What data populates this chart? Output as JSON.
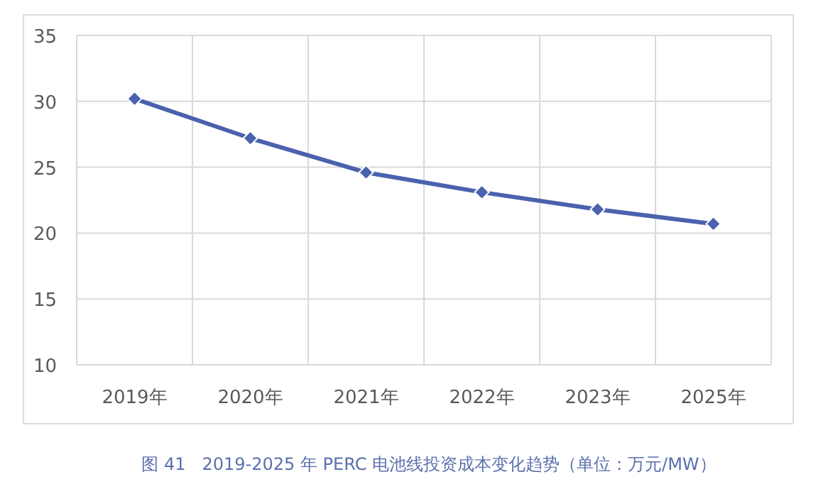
{
  "chart_data": {
    "type": "line",
    "title": "图 41   2019-2025 年 PERC 电池线投资成本变化趋势（单位：万元/MW）",
    "categories": [
      "2019年",
      "2020年",
      "2021年",
      "2022年",
      "2023年",
      "2025年"
    ],
    "series": [
      {
        "color": "#4a62ad",
        "values": [
          30.2,
          27.2,
          24.6,
          23.1,
          21.8,
          20.7
        ]
      }
    ],
    "ylim": [
      10,
      35
    ],
    "yticks": [
      10,
      15,
      20,
      25,
      30,
      35
    ],
    "grid": true,
    "marker": "diamond",
    "line_style": "solid"
  }
}
